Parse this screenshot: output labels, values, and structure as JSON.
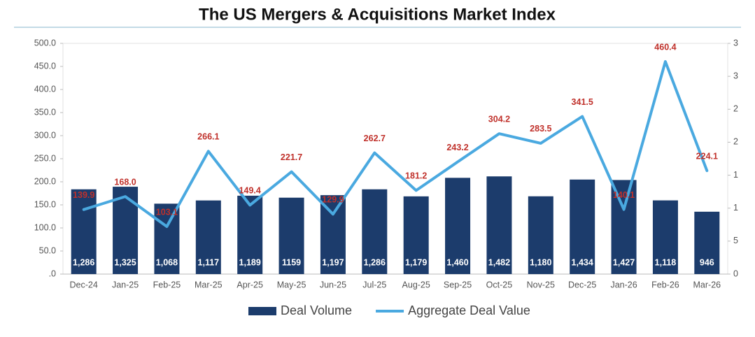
{
  "chart_data": {
    "type": "bar-line",
    "title": "The US Mergers & Acquisitions Market Index",
    "categories": [
      "Dec-24",
      "Jan-25",
      "Feb-25",
      "Mar-25",
      "Apr-25",
      "May-25",
      "Jun-25",
      "Jul-25",
      "Aug-25",
      "Sep-25",
      "Oct-25",
      "Nov-25",
      "Dec-25",
      "Jan-26",
      "Feb-26",
      "Mar-26"
    ],
    "series": [
      {
        "name": "Deal Volume",
        "type": "bar",
        "axis": "y2",
        "color": "#1c3c6c",
        "values": [
          1286,
          1325,
          1068,
          1117,
          1189,
          1159,
          1197,
          1286,
          1179,
          1460,
          1482,
          1180,
          1434,
          1427,
          1118,
          946
        ],
        "value_labels": [
          "1,286",
          "1,325",
          "1,068",
          "1,117",
          "1,189",
          "1159",
          "1,197",
          "1,286",
          "1,179",
          "1,460",
          "1,482",
          "1,180",
          "1,434",
          "1,427",
          "1,118",
          "946"
        ]
      },
      {
        "name": "Aggregate Deal Value",
        "type": "line",
        "axis": "y",
        "color": "#4aa9e0",
        "values": [
          139.9,
          168.0,
          103.1,
          266.1,
          149.4,
          221.7,
          129.9,
          262.7,
          181.2,
          243.2,
          304.2,
          283.5,
          341.5,
          140.1,
          460.4,
          224.1
        ],
        "value_labels": [
          "139.9",
          "168.0",
          "103.1",
          "266.1",
          "149.4",
          "221.7",
          "129.9",
          "262.7",
          "181.2",
          "243.2",
          "304.2",
          "283.5",
          "341.5",
          "140.1",
          "460.4",
          "224.1"
        ]
      }
    ],
    "ylim": [
      0,
      500
    ],
    "yticks": [
      {
        "value": 0,
        "label": ".0"
      },
      {
        "value": 50,
        "label": "50.0"
      },
      {
        "value": 100,
        "label": "100.0"
      },
      {
        "value": 150,
        "label": "150.0"
      },
      {
        "value": 200,
        "label": "200.0"
      },
      {
        "value": 250,
        "label": "250.0"
      },
      {
        "value": 300,
        "label": "300.0"
      },
      {
        "value": 350,
        "label": "350.0"
      },
      {
        "value": 400,
        "label": "400.0"
      },
      {
        "value": 450,
        "label": "450.0"
      },
      {
        "value": 500,
        "label": "500.0"
      }
    ],
    "y2lim": [
      0,
      3500
    ],
    "y2ticks": [
      0,
      {
        "value": 500,
        "label": "5"
      },
      {
        "value": 1000,
        "label": "1"
      },
      {
        "value": 1500,
        "label": "1"
      },
      {
        "value": 2000,
        "label": "2"
      },
      {
        "value": 2500,
        "label": "2"
      },
      {
        "value": 3000,
        "label": "3"
      },
      {
        "value": 3500,
        "label": "3"
      }
    ],
    "grid": false,
    "legend": "bottom"
  }
}
